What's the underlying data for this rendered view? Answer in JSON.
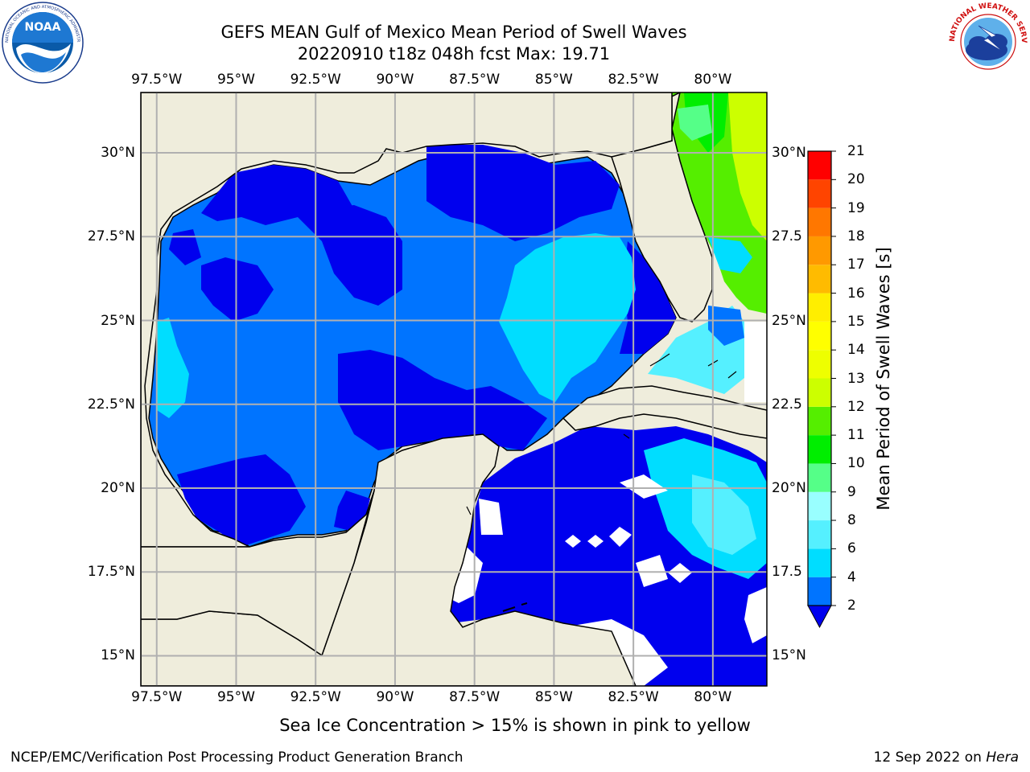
{
  "header": {
    "title_line1": "GEFS MEAN Gulf of Mexico Mean Period of Swell Waves",
    "title_line2": "20220910 t18z 048h fcst   Max: 19.71"
  },
  "logos": {
    "noaa": {
      "text": "NOAA",
      "ring_text": "NATIONAL OCEANIC AND ATMOSPHERIC ADMINISTRATION · U.S. DEPARTMENT OF COMMERCE"
    },
    "nws": {
      "ring_text": "NATIONAL WEATHER SERVICE"
    }
  },
  "map": {
    "lon_labels": [
      "97.5°W",
      "95°W",
      "92.5°W",
      "90°W",
      "87.5°W",
      "85°W",
      "82.5°W",
      "80°W"
    ],
    "lat_labels_left": [
      "30°N",
      "27.5°N",
      "25°N",
      "22.5°N",
      "20°N",
      "17.5°N",
      "15°N"
    ],
    "lat_labels_right": [
      "30°N",
      "27.5",
      "25°N",
      "22.5",
      "20°N",
      "17.5",
      "15°N"
    ],
    "extent": {
      "lon_min": -98,
      "lon_max": -78.3,
      "lat_min": 14.1,
      "lat_max": 31.8
    },
    "colors": {
      "land": "#efeddc",
      "no_data": "#ffffff",
      "grid": "#b0b0b0",
      "coast": "#000000"
    }
  },
  "colorbar": {
    "label": "Mean Period of Swell Waves [s]",
    "ticks": [
      "2",
      "4",
      "6",
      "8",
      "9",
      "10",
      "11",
      "12",
      "13",
      "14",
      "15",
      "16",
      "17",
      "18",
      "19",
      "20",
      "21"
    ],
    "bins": [
      {
        "from": 2,
        "to": 4,
        "color": "#0074ff"
      },
      {
        "from": 4,
        "to": 6,
        "color": "#00ddff"
      },
      {
        "from": 6,
        "to": 8,
        "color": "#55f0ff"
      },
      {
        "from": 8,
        "to": 9,
        "color": "#99ffff"
      },
      {
        "from": 9,
        "to": 10,
        "color": "#55ff88"
      },
      {
        "from": 10,
        "to": 11,
        "color": "#00ee00"
      },
      {
        "from": 11,
        "to": 12,
        "color": "#55ee00"
      },
      {
        "from": 12,
        "to": 13,
        "color": "#ccff00"
      },
      {
        "from": 13,
        "to": 14,
        "color": "#eeff00"
      },
      {
        "from": 14,
        "to": 15,
        "color": "#ffff00"
      },
      {
        "from": 15,
        "to": 16,
        "color": "#ffee00"
      },
      {
        "from": 16,
        "to": 17,
        "color": "#ffbb00"
      },
      {
        "from": 17,
        "to": 18,
        "color": "#ff9900"
      },
      {
        "from": 18,
        "to": 19,
        "color": "#ff7700"
      },
      {
        "from": 19,
        "to": 20,
        "color": "#ff4400"
      },
      {
        "from": 20,
        "to": 21,
        "color": "#ff0000"
      }
    ],
    "under_color": "#0000ee"
  },
  "note": "Sea Ice Concentration > 15% is shown in pink to yellow",
  "footer": {
    "left": "NCEP/EMC/Verification Post Processing Product Generation Branch",
    "date": "12 Sep 2022 on ",
    "host": "Hera"
  }
}
